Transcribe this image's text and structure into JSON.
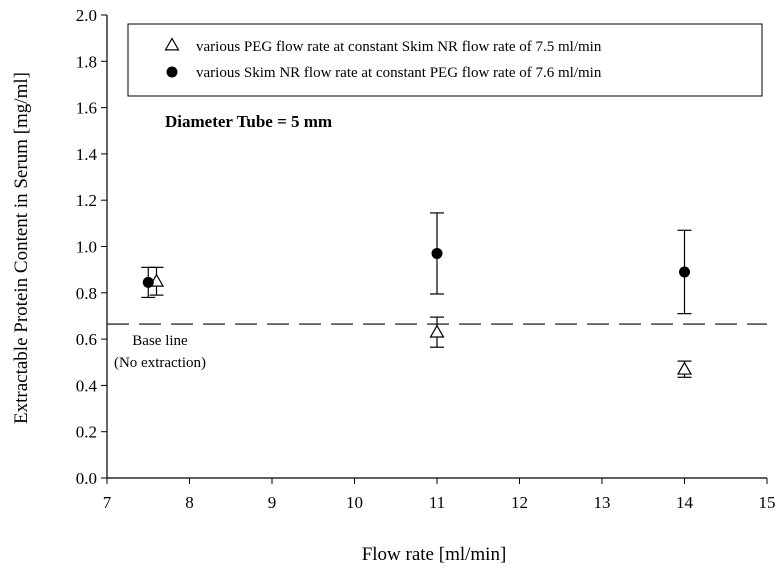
{
  "chart_data": {
    "type": "scatter",
    "title": "",
    "xlabel": "Flow rate [ml/min]",
    "ylabel": "Extractable Protein Content in Serum [mg/ml]",
    "xlim": [
      7,
      15
    ],
    "ylim": [
      0.0,
      2.0
    ],
    "x_ticks": [
      7,
      8,
      9,
      10,
      11,
      12,
      13,
      14,
      15
    ],
    "y_ticks": [
      "0.0",
      "0.2",
      "0.4",
      "0.6",
      "0.8",
      "1.0",
      "1.2",
      "1.4",
      "1.6",
      "1.8",
      "2.0"
    ],
    "grid": false,
    "legend_position": "top-right",
    "series": [
      {
        "name": "various PEG flow rate at constant Skim NR flow rate of 7.5 ml/min",
        "marker": "open-triangle",
        "x": [
          7.6,
          11,
          14
        ],
        "y": [
          0.85,
          0.63,
          0.47
        ],
        "err": [
          0.06,
          0.065,
          0.035
        ]
      },
      {
        "name": "various Skim NR flow rate at constant PEG flow rate of 7.6 ml/min",
        "marker": "filled-circle",
        "x": [
          7.5,
          11,
          14
        ],
        "y": [
          0.845,
          0.97,
          0.89
        ],
        "err": [
          0.065,
          0.175,
          0.18
        ]
      }
    ],
    "baseline": {
      "y": 0.665,
      "label_line1": "Base line",
      "label_line2": "(No extraction)"
    },
    "annotations": [
      {
        "text": "Diameter Tube = 5 mm"
      }
    ]
  }
}
